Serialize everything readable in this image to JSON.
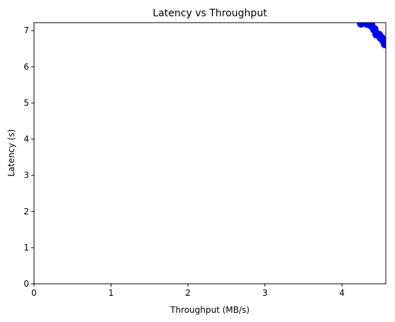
{
  "chart_data": {
    "type": "line",
    "title": "Latency vs Throughput",
    "xlabel": "Throughput (MB/s)",
    "ylabel": "Latency (s)",
    "xlim": [
      0,
      4.57
    ],
    "ylim": [
      0,
      7.22
    ],
    "xticks": [
      0,
      1,
      2,
      3,
      4
    ],
    "yticks": [
      0,
      1,
      2,
      3,
      4,
      5,
      6,
      7
    ],
    "grid": false,
    "legend": "none",
    "series": [
      {
        "color": "#0000ff",
        "marker": "circle",
        "x": [
          4.25,
          4.33,
          4.38,
          4.42,
          4.45,
          4.48,
          4.51,
          4.54,
          4.56
        ],
        "y": [
          7.2,
          7.19,
          7.15,
          7.04,
          6.9,
          6.88,
          6.8,
          6.73,
          6.63
        ]
      }
    ]
  }
}
